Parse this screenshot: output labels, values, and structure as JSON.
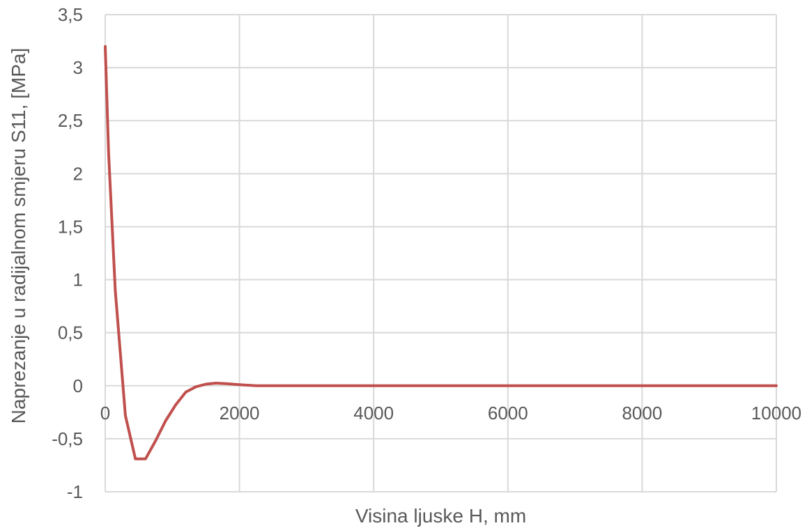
{
  "chart_data": {
    "type": "line",
    "title": "",
    "xlabel": "Visina ljuske H, mm",
    "ylabel": "Naprezanje u radijalnom smjeru S11, [MPa]",
    "xlim": [
      0,
      10000
    ],
    "ylim": [
      -1,
      3.5
    ],
    "xticks": [
      0,
      2000,
      4000,
      6000,
      8000,
      10000
    ],
    "xtick_labels": [
      "0",
      "2000",
      "4000",
      "6000",
      "8000",
      "10000"
    ],
    "yticks": [
      -1,
      -0.5,
      0,
      0.5,
      1,
      1.5,
      2,
      2.5,
      3,
      3.5
    ],
    "ytick_labels": [
      "-1",
      "-0,5",
      "0",
      "0,5",
      "1",
      "1,5",
      "2",
      "2,5",
      "3",
      "3,5"
    ],
    "grid": true,
    "legend": "none",
    "series": [
      {
        "color": "#c0504d",
        "x": [
          0,
          50,
          150,
          300,
          450,
          600,
          750,
          900,
          1050,
          1200,
          1350,
          1500,
          1650,
          1800,
          2000,
          2250,
          2500,
          3000,
          4000,
          5000,
          6000,
          7000,
          8000,
          9000,
          10000
        ],
        "y": [
          3.2,
          2.2,
          0.9,
          -0.28,
          -0.69,
          -0.69,
          -0.52,
          -0.33,
          -0.18,
          -0.06,
          -0.01,
          0.015,
          0.025,
          0.02,
          0.01,
          0.0,
          0.0,
          0.0,
          0.0,
          0.0,
          0.0,
          0.0,
          0.0,
          0.0,
          0.0
        ]
      }
    ]
  }
}
